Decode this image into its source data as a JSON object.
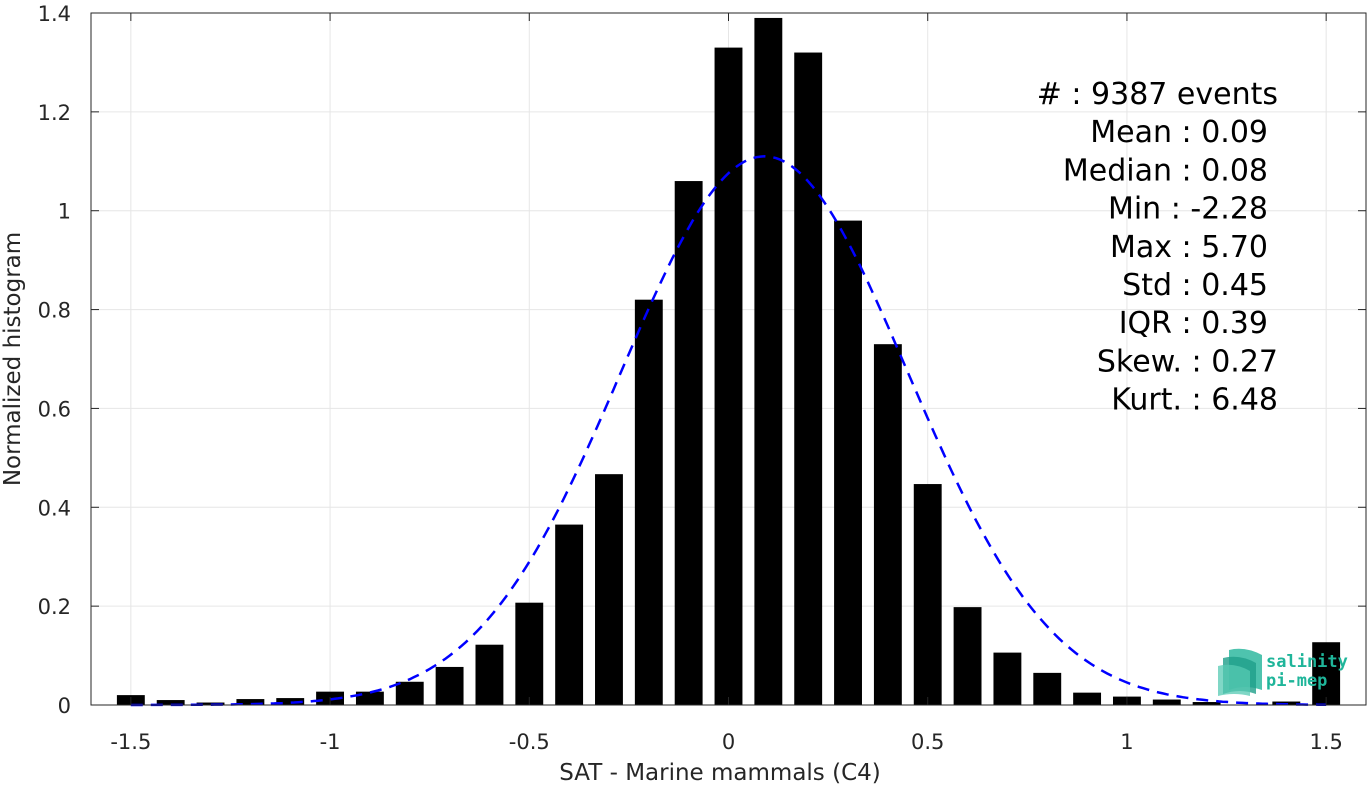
{
  "chart_data": {
    "type": "bar",
    "xlabel": "SAT - Marine mammals (C4)",
    "ylabel": "Normalized histogram",
    "xlim": [
      -1.6,
      1.6
    ],
    "ylim": [
      0,
      1.4
    ],
    "xticks": [
      -1.5,
      -1,
      -0.5,
      0,
      0.5,
      1,
      1.5
    ],
    "xtick_labels": [
      "-1.5",
      "-1",
      "-0.5",
      "0",
      "0.5",
      "1",
      "1.5"
    ],
    "yticks": [
      0,
      0.2,
      0.4,
      0.6,
      0.8,
      1,
      1.2,
      1.4
    ],
    "ytick_labels": [
      "0",
      "0.2",
      "0.4",
      "0.6",
      "0.8",
      "1",
      "1.2",
      "1.4"
    ],
    "grid": true,
    "bar_color": "#000000",
    "bar_width": 0.07,
    "bins": [
      -1.5,
      -1.4,
      -1.3,
      -1.2,
      -1.1,
      -1.0,
      -0.9,
      -0.8,
      -0.7,
      -0.6,
      -0.5,
      -0.4,
      -0.3,
      -0.2,
      -0.1,
      0.0,
      0.1,
      0.2,
      0.3,
      0.4,
      0.5,
      0.6,
      0.7,
      0.8,
      0.9,
      1.0,
      1.1,
      1.2,
      1.3,
      1.4,
      1.5
    ],
    "values": [
      0.02,
      0.01,
      0.005,
      0.012,
      0.014,
      0.027,
      0.027,
      0.047,
      0.077,
      0.122,
      0.207,
      0.365,
      0.467,
      0.82,
      1.06,
      1.33,
      1.39,
      1.32,
      0.98,
      0.73,
      0.447,
      0.198,
      0.106,
      0.065,
      0.025,
      0.017,
      0.011,
      0.006,
      0.0,
      0.007,
      0.127
    ],
    "fit": {
      "type": "gaussian",
      "color": "#0000ff",
      "style": "dashed",
      "mean": 0.09,
      "std": 0.36,
      "peak": 1.11
    },
    "stats_lines": [
      "#  : 9387 events",
      "Mean : 0.09",
      "Median : 0.08",
      "Min : -2.28",
      "Max : 5.70",
      "Std : 0.45",
      "IQR : 0.39",
      "Skew. : 0.27",
      "Kurt. : 6.48"
    ]
  },
  "logo": {
    "line1": "salinity",
    "line2": "pi-mep",
    "color": "#1fb59a"
  }
}
